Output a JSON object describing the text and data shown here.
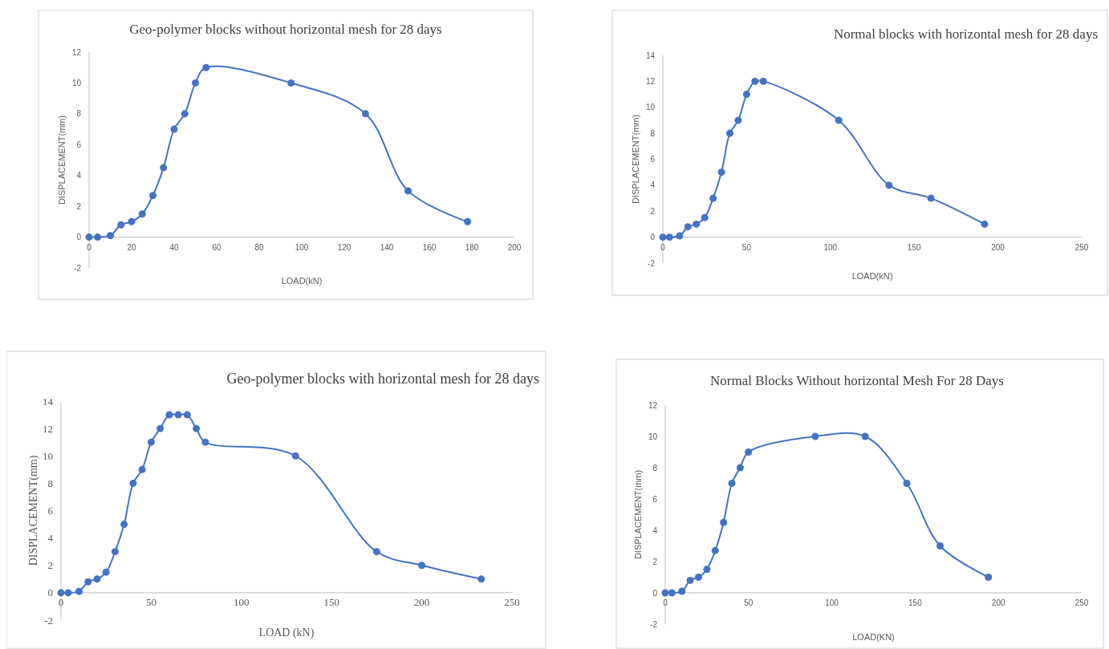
{
  "chart_data": [
    {
      "type": "line",
      "title": "Geo-polymer blocks without horizontal mesh for 28 days",
      "xlabel": "LOAD(kN)",
      "ylabel": "DISPLACEMENT(mm)",
      "marker": "circle",
      "grid": false,
      "xlim": [
        0,
        200
      ],
      "xticks": [
        0,
        20,
        40,
        60,
        80,
        100,
        120,
        140,
        160,
        180,
        200
      ],
      "ylim": [
        -2,
        12
      ],
      "yticks": [
        -2,
        0,
        2,
        4,
        6,
        8,
        10,
        12
      ],
      "series": [
        {
          "color": "#4472c4",
          "x": [
            0,
            4,
            10,
            15,
            20,
            25,
            30,
            35,
            40,
            45,
            50,
            55,
            95,
            130,
            150,
            178
          ],
          "values": [
            0,
            0,
            0.1,
            0.8,
            1,
            1.5,
            2.7,
            4.5,
            7,
            8,
            10,
            11,
            10,
            8,
            3,
            1
          ]
        }
      ]
    },
    {
      "type": "line",
      "title": "Normal blocks with  horizontal mesh for 28 days",
      "xlabel": "LOAD(kN)",
      "ylabel": "DISPLACEMENT(mm)",
      "marker": "circle",
      "grid": false,
      "xlim": [
        0,
        250
      ],
      "xticks": [
        0,
        50,
        100,
        150,
        200,
        250
      ],
      "ylim": [
        -2,
        14
      ],
      "yticks": [
        -2,
        0,
        2,
        4,
        6,
        8,
        10,
        12,
        14
      ],
      "series": [
        {
          "color": "#4472c4",
          "x": [
            0,
            4,
            10,
            15,
            20,
            25,
            30,
            35,
            40,
            45,
            50,
            55,
            60,
            105,
            135,
            160,
            192
          ],
          "values": [
            0,
            0,
            0.1,
            0.8,
            1,
            1.5,
            3,
            5,
            8,
            9,
            11,
            12,
            12,
            9,
            4,
            3,
            1
          ]
        }
      ]
    },
    {
      "type": "line",
      "title": "Geo-polymer blocks with horizontal mesh for 28 days",
      "xlabel": "LOAD (kN)",
      "ylabel": "DISPLACEMENT(mm)",
      "marker": "circle",
      "grid": false,
      "xlim": [
        0,
        250
      ],
      "xticks": [
        0,
        50,
        100,
        150,
        200,
        250
      ],
      "ylim": [
        -2,
        14
      ],
      "yticks": [
        -2,
        0,
        2,
        4,
        6,
        8,
        10,
        12,
        14
      ],
      "series": [
        {
          "color": "#4472c4",
          "x": [
            0,
            4,
            10,
            15,
            20,
            25,
            30,
            35,
            40,
            45,
            50,
            55,
            60,
            65,
            70,
            75,
            80,
            130,
            175,
            200,
            233
          ],
          "values": [
            0,
            0,
            0.1,
            0.8,
            1,
            1.5,
            3,
            5,
            8,
            9,
            11,
            12,
            13,
            13,
            13,
            12,
            11,
            10,
            3,
            2,
            1
          ]
        }
      ]
    },
    {
      "type": "line",
      "title": "Normal Blocks Without horizontal Mesh For 28 Days",
      "xlabel": "LOAD(KN)",
      "ylabel": "DISPLACEMENT(mm)",
      "marker": "circle",
      "grid": false,
      "xlim": [
        0,
        250
      ],
      "xticks": [
        0,
        50,
        100,
        150,
        200,
        250
      ],
      "ylim": [
        -2,
        12
      ],
      "yticks": [
        -2,
        0,
        2,
        4,
        6,
        8,
        10,
        12
      ],
      "series": [
        {
          "color": "#4472c4",
          "x": [
            0,
            4,
            10,
            15,
            20,
            25,
            30,
            35,
            40,
            45,
            50,
            90,
            120,
            145,
            165,
            194
          ],
          "values": [
            0,
            0,
            0.1,
            0.8,
            1,
            1.5,
            2.7,
            4.5,
            7,
            8,
            9,
            10,
            10,
            7,
            3,
            1
          ]
        }
      ]
    }
  ]
}
